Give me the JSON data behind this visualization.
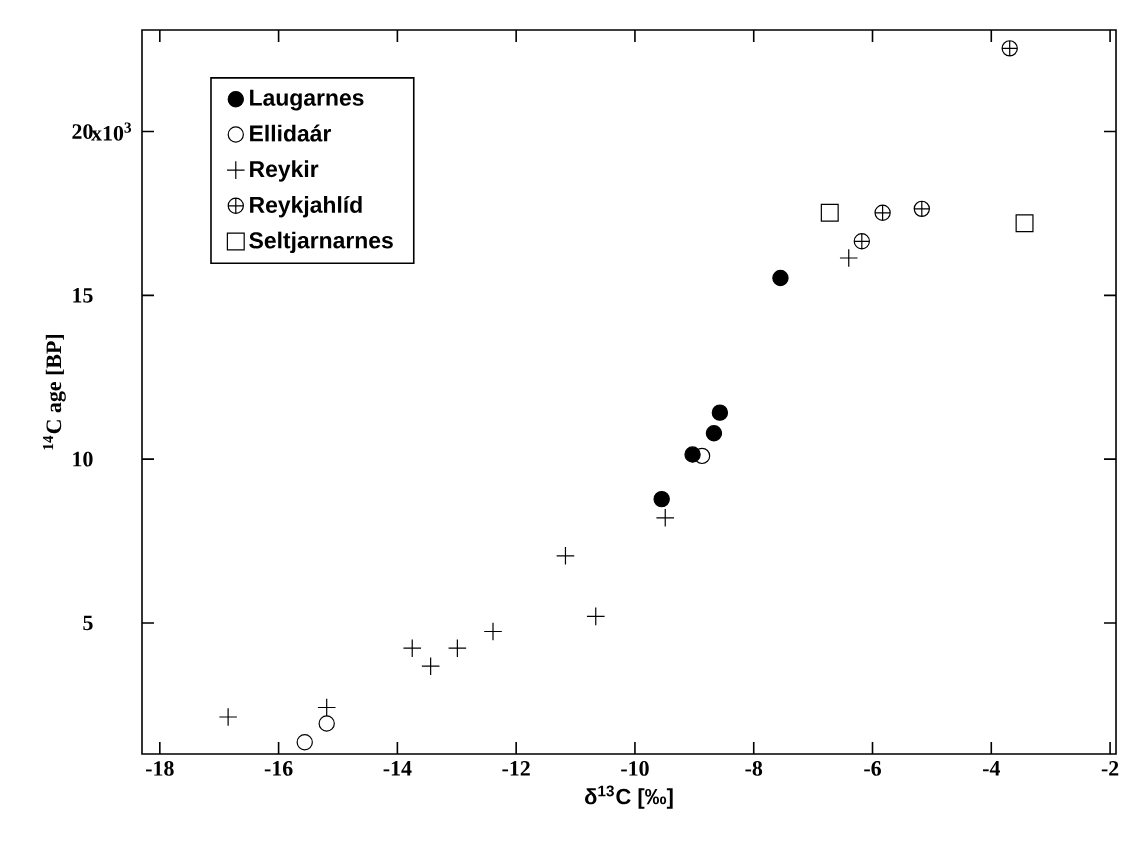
{
  "chart_data": {
    "type": "scatter",
    "xlabel": "δ$^{13}$C [‰]",
    "ylabel": "$^{14}$C age [BP]",
    "xlim": [
      -18.3,
      -1.9
    ],
    "xticks": [
      -18,
      -16,
      -14,
      -12,
      -10,
      -8,
      -6,
      -4,
      -2
    ],
    "ylim": [
      1,
      23.1
    ],
    "yticks": [
      5,
      10,
      15,
      20
    ],
    "annotations": [
      "x10$^{3}$"
    ],
    "legend": "top left",
    "grid": false,
    "series": [
      {
        "name": "Laugarnes",
        "color": "#000000",
        "marker": "circle",
        "x": [
          -7.55,
          -8.57,
          -8.67,
          -9.03,
          -9.55
        ],
        "values": [
          15.53,
          11.42,
          10.79,
          10.14,
          8.78
        ]
      },
      {
        "name": "Ellidaár",
        "color": "#000000",
        "marker": "circle",
        "x": [
          -8.87,
          -15.19,
          -15.56
        ],
        "values": [
          10.1,
          1.93,
          1.36
        ]
      },
      {
        "name": "Reykir",
        "color": "#000000",
        "marker": "cross",
        "x": [
          -16.85,
          -15.19,
          -13.75,
          -13.44,
          -12.99,
          -12.39,
          -11.17,
          -10.66,
          -9.49,
          -6.4
        ],
        "values": [
          2.13,
          2.42,
          4.23,
          3.68,
          4.23,
          4.74,
          7.05,
          5.2,
          8.21,
          16.14
        ]
      },
      {
        "name": "Reykjahlíd",
        "color": "#000000",
        "marker": "cross",
        "x": [
          -3.69,
          -6.18,
          -5.83,
          -5.17
        ],
        "values": [
          22.54,
          16.65,
          17.52,
          17.64
        ]
      },
      {
        "name": "Seltjarnarnes",
        "color": "#000000",
        "marker": "square",
        "x": [
          -6.72,
          -3.44
        ],
        "values": [
          17.52,
          17.2
        ]
      }
    ]
  }
}
